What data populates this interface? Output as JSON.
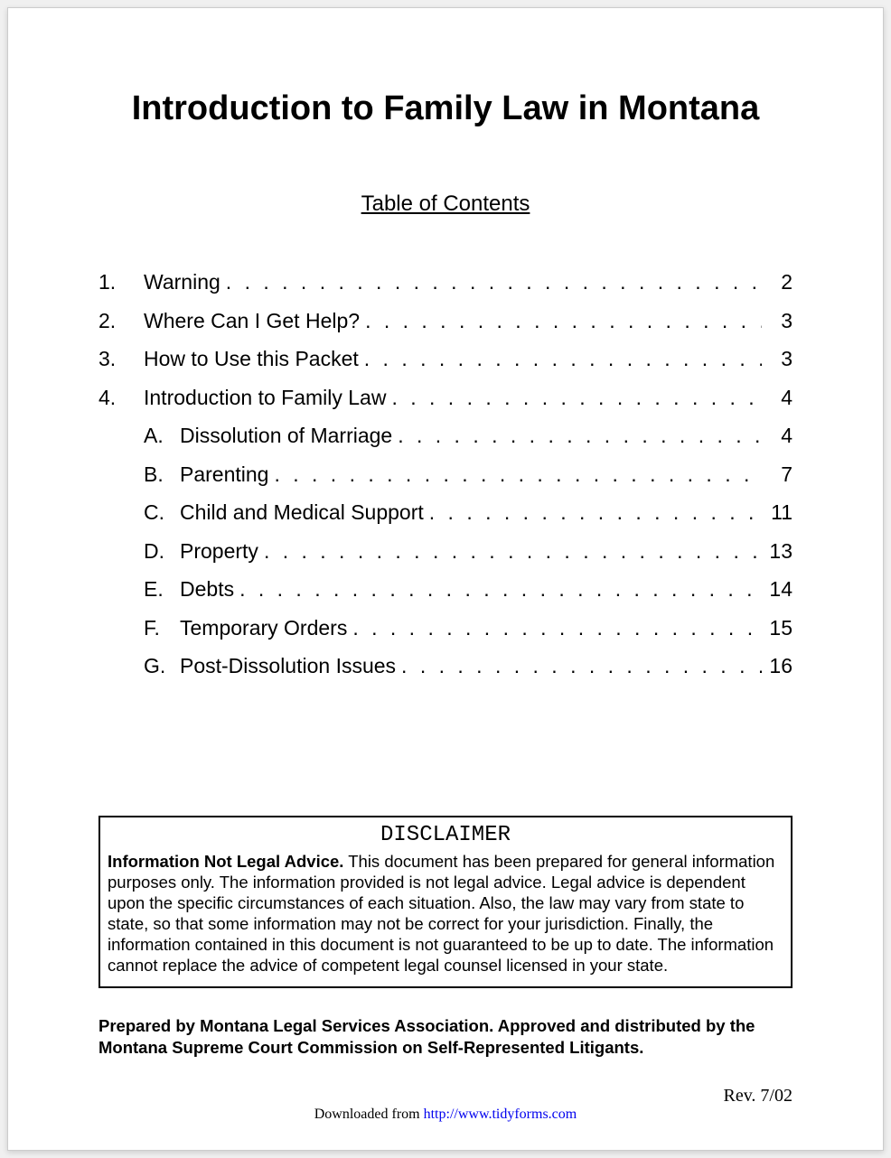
{
  "title": "Introduction to Family Law in Montana",
  "subtitle": "Table of Contents",
  "toc": {
    "items": [
      {
        "num": "1.",
        "label": "Warning",
        "page": "2"
      },
      {
        "num": "2.",
        "label": "Where Can I Get Help?",
        "page": "3"
      },
      {
        "num": "3.",
        "label": "How to Use this Packet",
        "page": "3"
      },
      {
        "num": "4.",
        "label": "Introduction to Family Law",
        "page": "4"
      }
    ],
    "subitems": [
      {
        "letter": "A.",
        "label": "Dissolution of Marriage",
        "page": "4"
      },
      {
        "letter": "B.",
        "label": "Parenting",
        "page": "7"
      },
      {
        "letter": "C.",
        "label": "Child and Medical Support",
        "page": "11"
      },
      {
        "letter": "D.",
        "label": "Property",
        "page": "13"
      },
      {
        "letter": "E.",
        "label": "Debts",
        "page": "14"
      },
      {
        "letter": "F.",
        "label": "Temporary Orders",
        "page": "15"
      },
      {
        "letter": "G.",
        "label": "Post-Dissolution Issues",
        "page": "16"
      }
    ]
  },
  "disclaimer": {
    "heading": "DISCLAIMER",
    "lead": "Information Not Legal Advice.",
    "body": "This document has been prepared for general information purposes only. The information provided is not legal advice. Legal advice is dependent upon the specific circumstances of each situation. Also, the law may vary from state to state, so that some information may not be correct for your jurisdiction. Finally, the information contained in this document is not guaranteed to be up to date. The information cannot replace the advice of competent legal counsel licensed in your state."
  },
  "prepared": "Prepared by Montana Legal Services Association.  Approved and distributed by the Montana Supreme Court Commission on Self-Represented Litigants.",
  "revision": "Rev. 7/02",
  "footer": {
    "prefix": "Downloaded from ",
    "link_text": "http://www.tidyforms.com"
  },
  "colors": {
    "page_bg": "#ffffff",
    "text": "#000000",
    "link": "#0000ee",
    "border": "#cccccc"
  },
  "typography": {
    "title_font": "Comic Sans MS",
    "title_size_pt": 28,
    "subtitle_size_pt": 18,
    "toc_size_pt": 17,
    "disclaimer_heading_font": "Courier New",
    "disclaimer_body_font": "Arial",
    "footer_font": "Times New Roman"
  }
}
